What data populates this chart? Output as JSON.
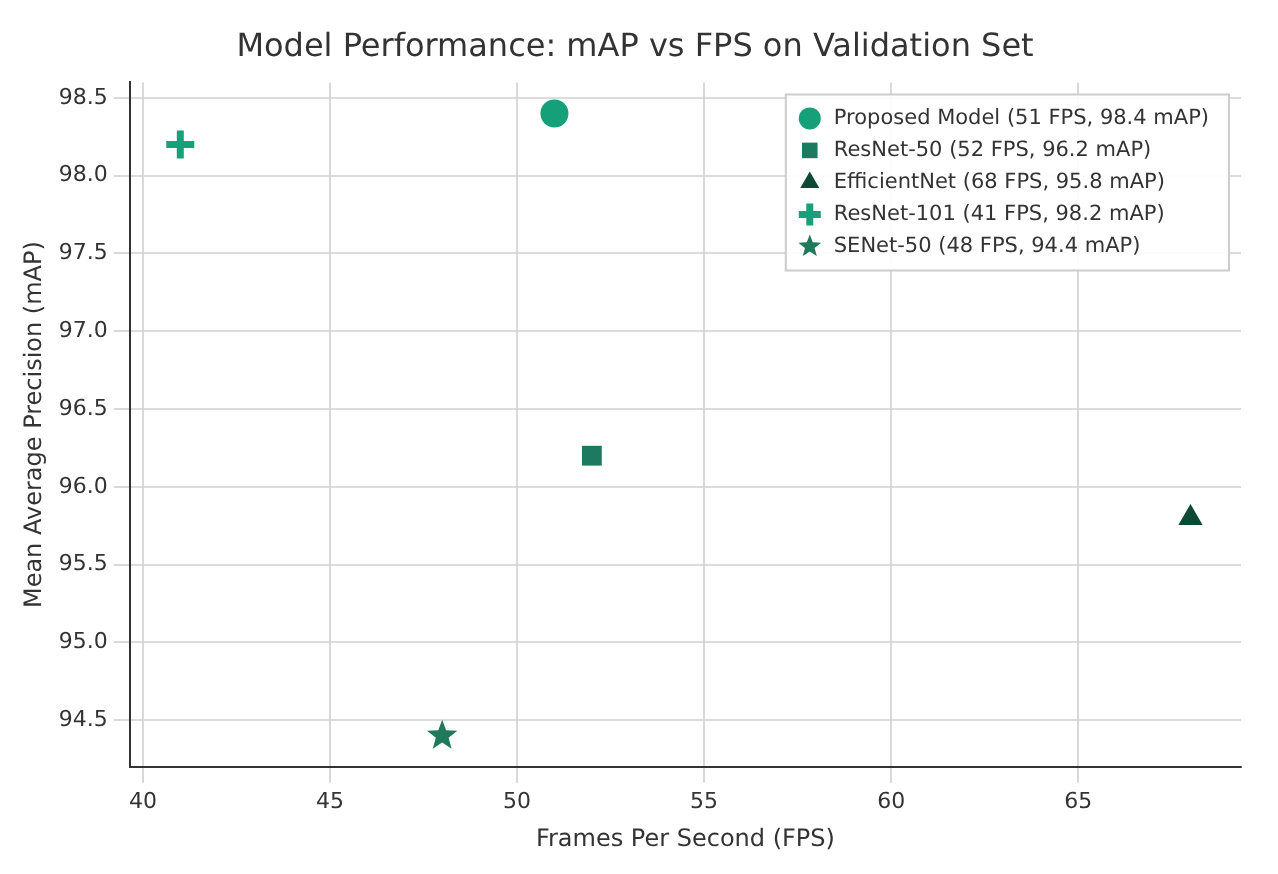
{
  "chart_data": {
    "type": "scatter",
    "title": "Model Performance: mAP vs FPS on Validation Set",
    "xlabel": "Frames Per Second (FPS)",
    "ylabel": "Mean Average Precision (mAP)",
    "series": [
      {
        "name": "Proposed Model (51 FPS, 98.4 mAP)",
        "color": "#16a07a",
        "marker": "circle",
        "x": [
          51
        ],
        "values": [
          98.4
        ]
      },
      {
        "name": "ResNet-50 (52 FPS, 96.2 mAP)",
        "color": "#1b7a5f",
        "marker": "square",
        "x": [
          52
        ],
        "values": [
          96.2
        ]
      },
      {
        "name": "EfficientNet (68 FPS, 95.8 mAP)",
        "color": "#0d4a36",
        "marker": "triangle",
        "x": [
          68
        ],
        "values": [
          95.8
        ]
      },
      {
        "name": "ResNet-101 (41 FPS, 98.2 mAP)",
        "color": "#17a079",
        "marker": "cross",
        "x": [
          41
        ],
        "values": [
          98.2
        ]
      },
      {
        "name": "SENet-50 (48 FPS, 94.4 mAP)",
        "color": "#1e7a5a",
        "marker": "star",
        "x": [
          48
        ],
        "values": [
          94.4
        ]
      }
    ],
    "xlim": [
      39.65,
      69.35
    ],
    "xticks": [
      40,
      45,
      50,
      55,
      60,
      65
    ],
    "ylim": [
      94.2,
      98.6
    ],
    "yticks": [
      {
        "value": 94.5,
        "label": "94.5"
      },
      {
        "value": 95,
        "label": "95.0"
      },
      {
        "value": 95.5,
        "label": "95.5"
      },
      {
        "value": 96,
        "label": "96.0"
      },
      {
        "value": 96.5,
        "label": "96.5"
      },
      {
        "value": 97,
        "label": "97.0"
      },
      {
        "value": 97.5,
        "label": "97.5"
      },
      {
        "value": 98,
        "label": "98.0"
      },
      {
        "value": 98.5,
        "label": "98.5"
      }
    ],
    "grid": true,
    "legend": "top right"
  }
}
